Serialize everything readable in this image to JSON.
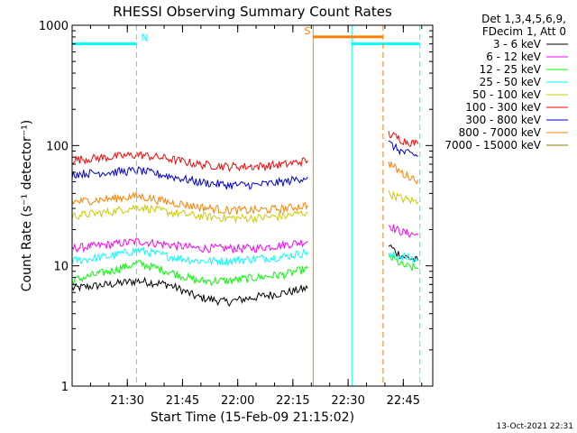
{
  "chart_data": {
    "type": "line",
    "title": "RHESSI Observing Summary Count Rates",
    "xlabel": "Start Time (15-Feb-09 21:15:02)",
    "ylabel": "Count Rate (s⁻¹ detector⁻¹)",
    "yscale": "log",
    "ylim": [
      1,
      1000
    ],
    "xlim_minutes_after_2115": [
      0,
      98
    ],
    "x_ticks": [
      "21:30",
      "21:45",
      "22:00",
      "22:15",
      "22:30",
      "22:45"
    ],
    "y_ticks": [
      "1",
      "10",
      "100",
      "1000"
    ],
    "legend_header": [
      "Det 1,3,4,5,6,9,",
      "FDecim 1, Att 0"
    ],
    "legend_position": "right",
    "footer": "13-Oct-2021 22:31",
    "series": [
      {
        "name": "3 - 6 keV",
        "color": "#000000",
        "segments": [
          {
            "x": [
              0,
              10,
              18,
              26,
              34,
              42,
              50,
              58,
              64
            ],
            "y": [
              6.5,
              7,
              7.5,
              7,
              5.5,
              5,
              5.5,
              6,
              6.5
            ]
          },
          {
            "x": [
              86,
              88,
              90,
              94
            ],
            "y": [
              15,
              13,
              12,
              11
            ]
          }
        ]
      },
      {
        "name": "6 - 12 keV",
        "color": "#ff00ff",
        "segments": [
          {
            "x": [
              0,
              10,
              18,
              26,
              34,
              42,
              50,
              58,
              64
            ],
            "y": [
              14,
              15,
              16,
              15,
              14,
              14,
              14,
              15,
              16
            ]
          },
          {
            "x": [
              86,
              88,
              90,
              94
            ],
            "y": [
              22,
              20,
              19,
              18
            ]
          }
        ]
      },
      {
        "name": "12 - 25 keV",
        "color": "#00ff00",
        "segments": [
          {
            "x": [
              0,
              10,
              18,
              26,
              34,
              42,
              50,
              58,
              64
            ],
            "y": [
              7.5,
              9,
              10.5,
              9,
              7.5,
              7.5,
              8,
              8.5,
              9.5
            ]
          },
          {
            "x": [
              86,
              88,
              90,
              94
            ],
            "y": [
              12,
              11,
              10,
              9.5
            ]
          }
        ]
      },
      {
        "name": "25 - 50 keV",
        "color": "#00ffff",
        "segments": [
          {
            "x": [
              0,
              10,
              18,
              26,
              34,
              42,
              50,
              58,
              64
            ],
            "y": [
              11,
              12,
              13.5,
              12,
              11,
              11,
              11.5,
              12,
              13
            ]
          },
          {
            "x": [
              86,
              88,
              90,
              94
            ],
            "y": [
              12,
              12,
              12,
              11
            ]
          }
        ]
      },
      {
        "name": "50 - 100 keV",
        "color": "#cccc00",
        "segments": [
          {
            "x": [
              0,
              10,
              18,
              26,
              34,
              42,
              50,
              58,
              64
            ],
            "y": [
              26,
              28,
              31,
              28,
              26,
              25,
              25,
              26,
              28
            ]
          },
          {
            "x": [
              86,
              88,
              90,
              94
            ],
            "y": [
              40,
              38,
              36,
              34
            ]
          }
        ]
      },
      {
        "name": "100 - 300 keV",
        "color": "#ff0000",
        "segments": [
          {
            "x": [
              0,
              10,
              18,
              26,
              34,
              42,
              50,
              58,
              64
            ],
            "y": [
              76,
              80,
              84,
              78,
              70,
              67,
              67,
              70,
              75
            ]
          },
          {
            "x": [
              86,
              88,
              90,
              94
            ],
            "y": [
              125,
              118,
              110,
              103
            ]
          }
        ]
      },
      {
        "name": "300 - 800 keV",
        "color": "#0000cc",
        "segments": [
          {
            "x": [
              0,
              10,
              18,
              26,
              34,
              42,
              50,
              58,
              64
            ],
            "y": [
              58,
              60,
              62,
              56,
              50,
              47,
              47,
              50,
              55
            ]
          },
          {
            "x": [
              86,
              88,
              90,
              94
            ],
            "y": [
              105,
              95,
              88,
              82
            ]
          }
        ]
      },
      {
        "name": "800 - 7000 keV",
        "color": "#ff8000",
        "segments": [
          {
            "x": [
              0,
              10,
              18,
              26,
              34,
              42,
              50,
              58,
              64
            ],
            "y": [
              34,
              36,
              38,
              34,
              31,
              29,
              29,
              30,
              32
            ]
          },
          {
            "x": [
              86,
              88,
              90,
              94
            ],
            "y": [
              72,
              64,
              58,
              52
            ]
          }
        ]
      },
      {
        "name": "7000 - 15000 keV",
        "color": "#808000",
        "segments": []
      }
    ],
    "annotations": [
      {
        "label": "N",
        "color": "#00ffff",
        "level": 700,
        "x_range": [
          0,
          17.5
        ],
        "dashed_x": 17.5,
        "solid_x": 0
      },
      {
        "label": "",
        "color": "#00ffff",
        "level": 700,
        "x_range": [
          76,
          94.5
        ],
        "dashed_x": 94.5,
        "solid_x": 76
      },
      {
        "label": "S",
        "color": "#ff8000",
        "level": 800,
        "x_range": [
          65.5,
          84.5
        ],
        "dashed_x": 84.5,
        "solid_x": 65.5
      }
    ]
  }
}
